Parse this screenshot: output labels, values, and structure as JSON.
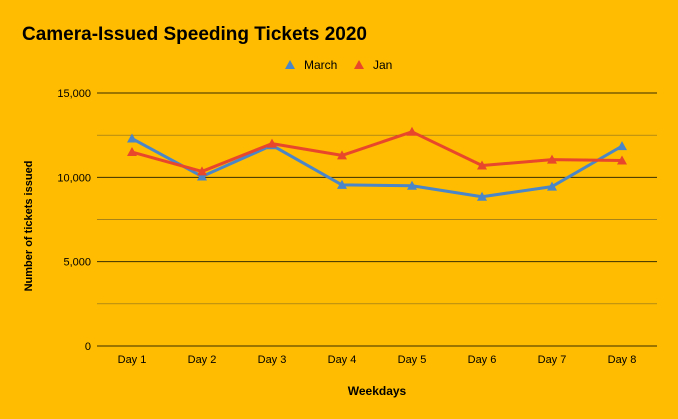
{
  "chart_data": {
    "type": "line",
    "title": "Camera-Issued Speeding Tickets 2020",
    "xlabel": "Weekdays",
    "ylabel": "Number of tickets issued",
    "categories": [
      "Day 1",
      "Day 2",
      "Day 3",
      "Day 4",
      "Day 5",
      "Day 6",
      "Day 7",
      "Day 8"
    ],
    "ylim": [
      0,
      15000
    ],
    "yticks": [
      0,
      5000,
      10000,
      15000
    ],
    "ytick_labels": [
      "0",
      "5,000",
      "10,000",
      "15,000"
    ],
    "gridlines": [
      0,
      2500,
      5000,
      7500,
      10000,
      12500,
      15000
    ],
    "legend_position": "top-center",
    "series": [
      {
        "name": "March",
        "color": "#4A86C8",
        "values": [
          12300,
          10050,
          11900,
          9550,
          9500,
          8850,
          9450,
          11850
        ]
      },
      {
        "name": "Jan",
        "color": "#E8472B",
        "values": [
          11500,
          10350,
          12000,
          11300,
          12700,
          10700,
          11050,
          11000
        ]
      }
    ]
  }
}
